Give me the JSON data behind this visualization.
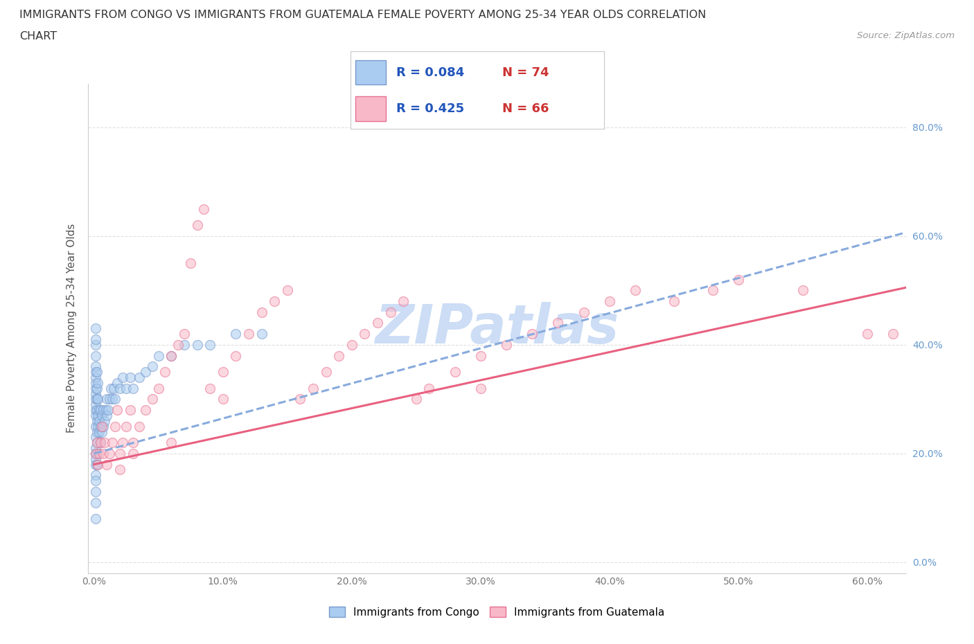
{
  "title_line1": "IMMIGRANTS FROM CONGO VS IMMIGRANTS FROM GUATEMALA FEMALE POVERTY AMONG 25-34 YEAR OLDS CORRELATION",
  "title_line2": "CHART",
  "source": "Source: ZipAtlas.com",
  "ylabel": "Female Poverty Among 25-34 Year Olds",
  "xlim": [
    -0.005,
    0.63
  ],
  "ylim": [
    -0.02,
    0.88
  ],
  "xticks": [
    0.0,
    0.1,
    0.2,
    0.3,
    0.4,
    0.5,
    0.6
  ],
  "xticklabels": [
    "0.0%",
    "10.0%",
    "20.0%",
    "30.0%",
    "40.0%",
    "50.0%",
    "60.0%"
  ],
  "yticks": [
    0.0,
    0.2,
    0.4,
    0.6,
    0.8
  ],
  "yticklabels": [
    "0.0%",
    "20.0%",
    "40.0%",
    "60.0%",
    "80.0%"
  ],
  "congo_R": 0.084,
  "congo_N": 74,
  "guatemala_R": 0.425,
  "guatemala_N": 66,
  "congo_color": "#aaccf0",
  "congo_edge_color": "#7799cc",
  "guatemala_color": "#f8b8c8",
  "guatemala_edge_color": "#e87090",
  "congo_line_color": "#88aadd",
  "guatemala_line_color": "#e86080",
  "tick_color": "#6699cc",
  "watermark_color": "#ccddf5",
  "background_color": "#ffffff",
  "gridline_color": "#e0e0e0",
  "title_color": "#333333",
  "legend_R_color": "#2255bb",
  "legend_N_color": "#cc3333",
  "marker_size": 100,
  "marker_alpha": 0.55,
  "line_width": 2.2,
  "congo_x": [
    0.001,
    0.001,
    0.001,
    0.001,
    0.001,
    0.001,
    0.001,
    0.001,
    0.001,
    0.001,
    0.001,
    0.001,
    0.001,
    0.001,
    0.001,
    0.001,
    0.001,
    0.001,
    0.001,
    0.001,
    0.001,
    0.001,
    0.001,
    0.001,
    0.001,
    0.002,
    0.002,
    0.002,
    0.002,
    0.002,
    0.002,
    0.002,
    0.002,
    0.002,
    0.003,
    0.003,
    0.003,
    0.003,
    0.004,
    0.004,
    0.004,
    0.005,
    0.005,
    0.005,
    0.006,
    0.006,
    0.007,
    0.007,
    0.008,
    0.009,
    0.01,
    0.01,
    0.011,
    0.012,
    0.013,
    0.014,
    0.015,
    0.016,
    0.018,
    0.02,
    0.022,
    0.025,
    0.028,
    0.03,
    0.035,
    0.04,
    0.045,
    0.05,
    0.06,
    0.07,
    0.08,
    0.09,
    0.11,
    0.13
  ],
  "congo_y": [
    0.21,
    0.23,
    0.25,
    0.27,
    0.28,
    0.29,
    0.3,
    0.31,
    0.32,
    0.33,
    0.34,
    0.35,
    0.36,
    0.38,
    0.4,
    0.41,
    0.43,
    0.2,
    0.19,
    0.18,
    0.16,
    0.15,
    0.13,
    0.11,
    0.08,
    0.22,
    0.24,
    0.26,
    0.28,
    0.3,
    0.32,
    0.35,
    0.2,
    0.18,
    0.25,
    0.27,
    0.3,
    0.33,
    0.24,
    0.26,
    0.28,
    0.22,
    0.25,
    0.28,
    0.24,
    0.27,
    0.25,
    0.28,
    0.26,
    0.28,
    0.27,
    0.3,
    0.28,
    0.3,
    0.32,
    0.3,
    0.32,
    0.3,
    0.33,
    0.32,
    0.34,
    0.32,
    0.34,
    0.32,
    0.34,
    0.35,
    0.36,
    0.38,
    0.38,
    0.4,
    0.4,
    0.4,
    0.42,
    0.42
  ],
  "guatemala_x": [
    0.001,
    0.002,
    0.003,
    0.004,
    0.005,
    0.006,
    0.007,
    0.008,
    0.01,
    0.012,
    0.014,
    0.016,
    0.018,
    0.02,
    0.022,
    0.025,
    0.028,
    0.03,
    0.035,
    0.04,
    0.045,
    0.05,
    0.055,
    0.06,
    0.065,
    0.07,
    0.075,
    0.08,
    0.085,
    0.09,
    0.1,
    0.11,
    0.12,
    0.13,
    0.14,
    0.15,
    0.16,
    0.17,
    0.18,
    0.19,
    0.2,
    0.21,
    0.22,
    0.23,
    0.24,
    0.25,
    0.26,
    0.28,
    0.3,
    0.32,
    0.34,
    0.36,
    0.38,
    0.4,
    0.42,
    0.45,
    0.48,
    0.5,
    0.55,
    0.6,
    0.02,
    0.03,
    0.06,
    0.1,
    0.3,
    0.62
  ],
  "guatemala_y": [
    0.2,
    0.22,
    0.18,
    0.2,
    0.22,
    0.25,
    0.2,
    0.22,
    0.18,
    0.2,
    0.22,
    0.25,
    0.28,
    0.2,
    0.22,
    0.25,
    0.28,
    0.22,
    0.25,
    0.28,
    0.3,
    0.32,
    0.35,
    0.38,
    0.4,
    0.42,
    0.55,
    0.62,
    0.65,
    0.32,
    0.35,
    0.38,
    0.42,
    0.46,
    0.48,
    0.5,
    0.3,
    0.32,
    0.35,
    0.38,
    0.4,
    0.42,
    0.44,
    0.46,
    0.48,
    0.3,
    0.32,
    0.35,
    0.38,
    0.4,
    0.42,
    0.44,
    0.46,
    0.48,
    0.5,
    0.48,
    0.5,
    0.52,
    0.5,
    0.42,
    0.17,
    0.2,
    0.22,
    0.3,
    0.32,
    0.42
  ]
}
